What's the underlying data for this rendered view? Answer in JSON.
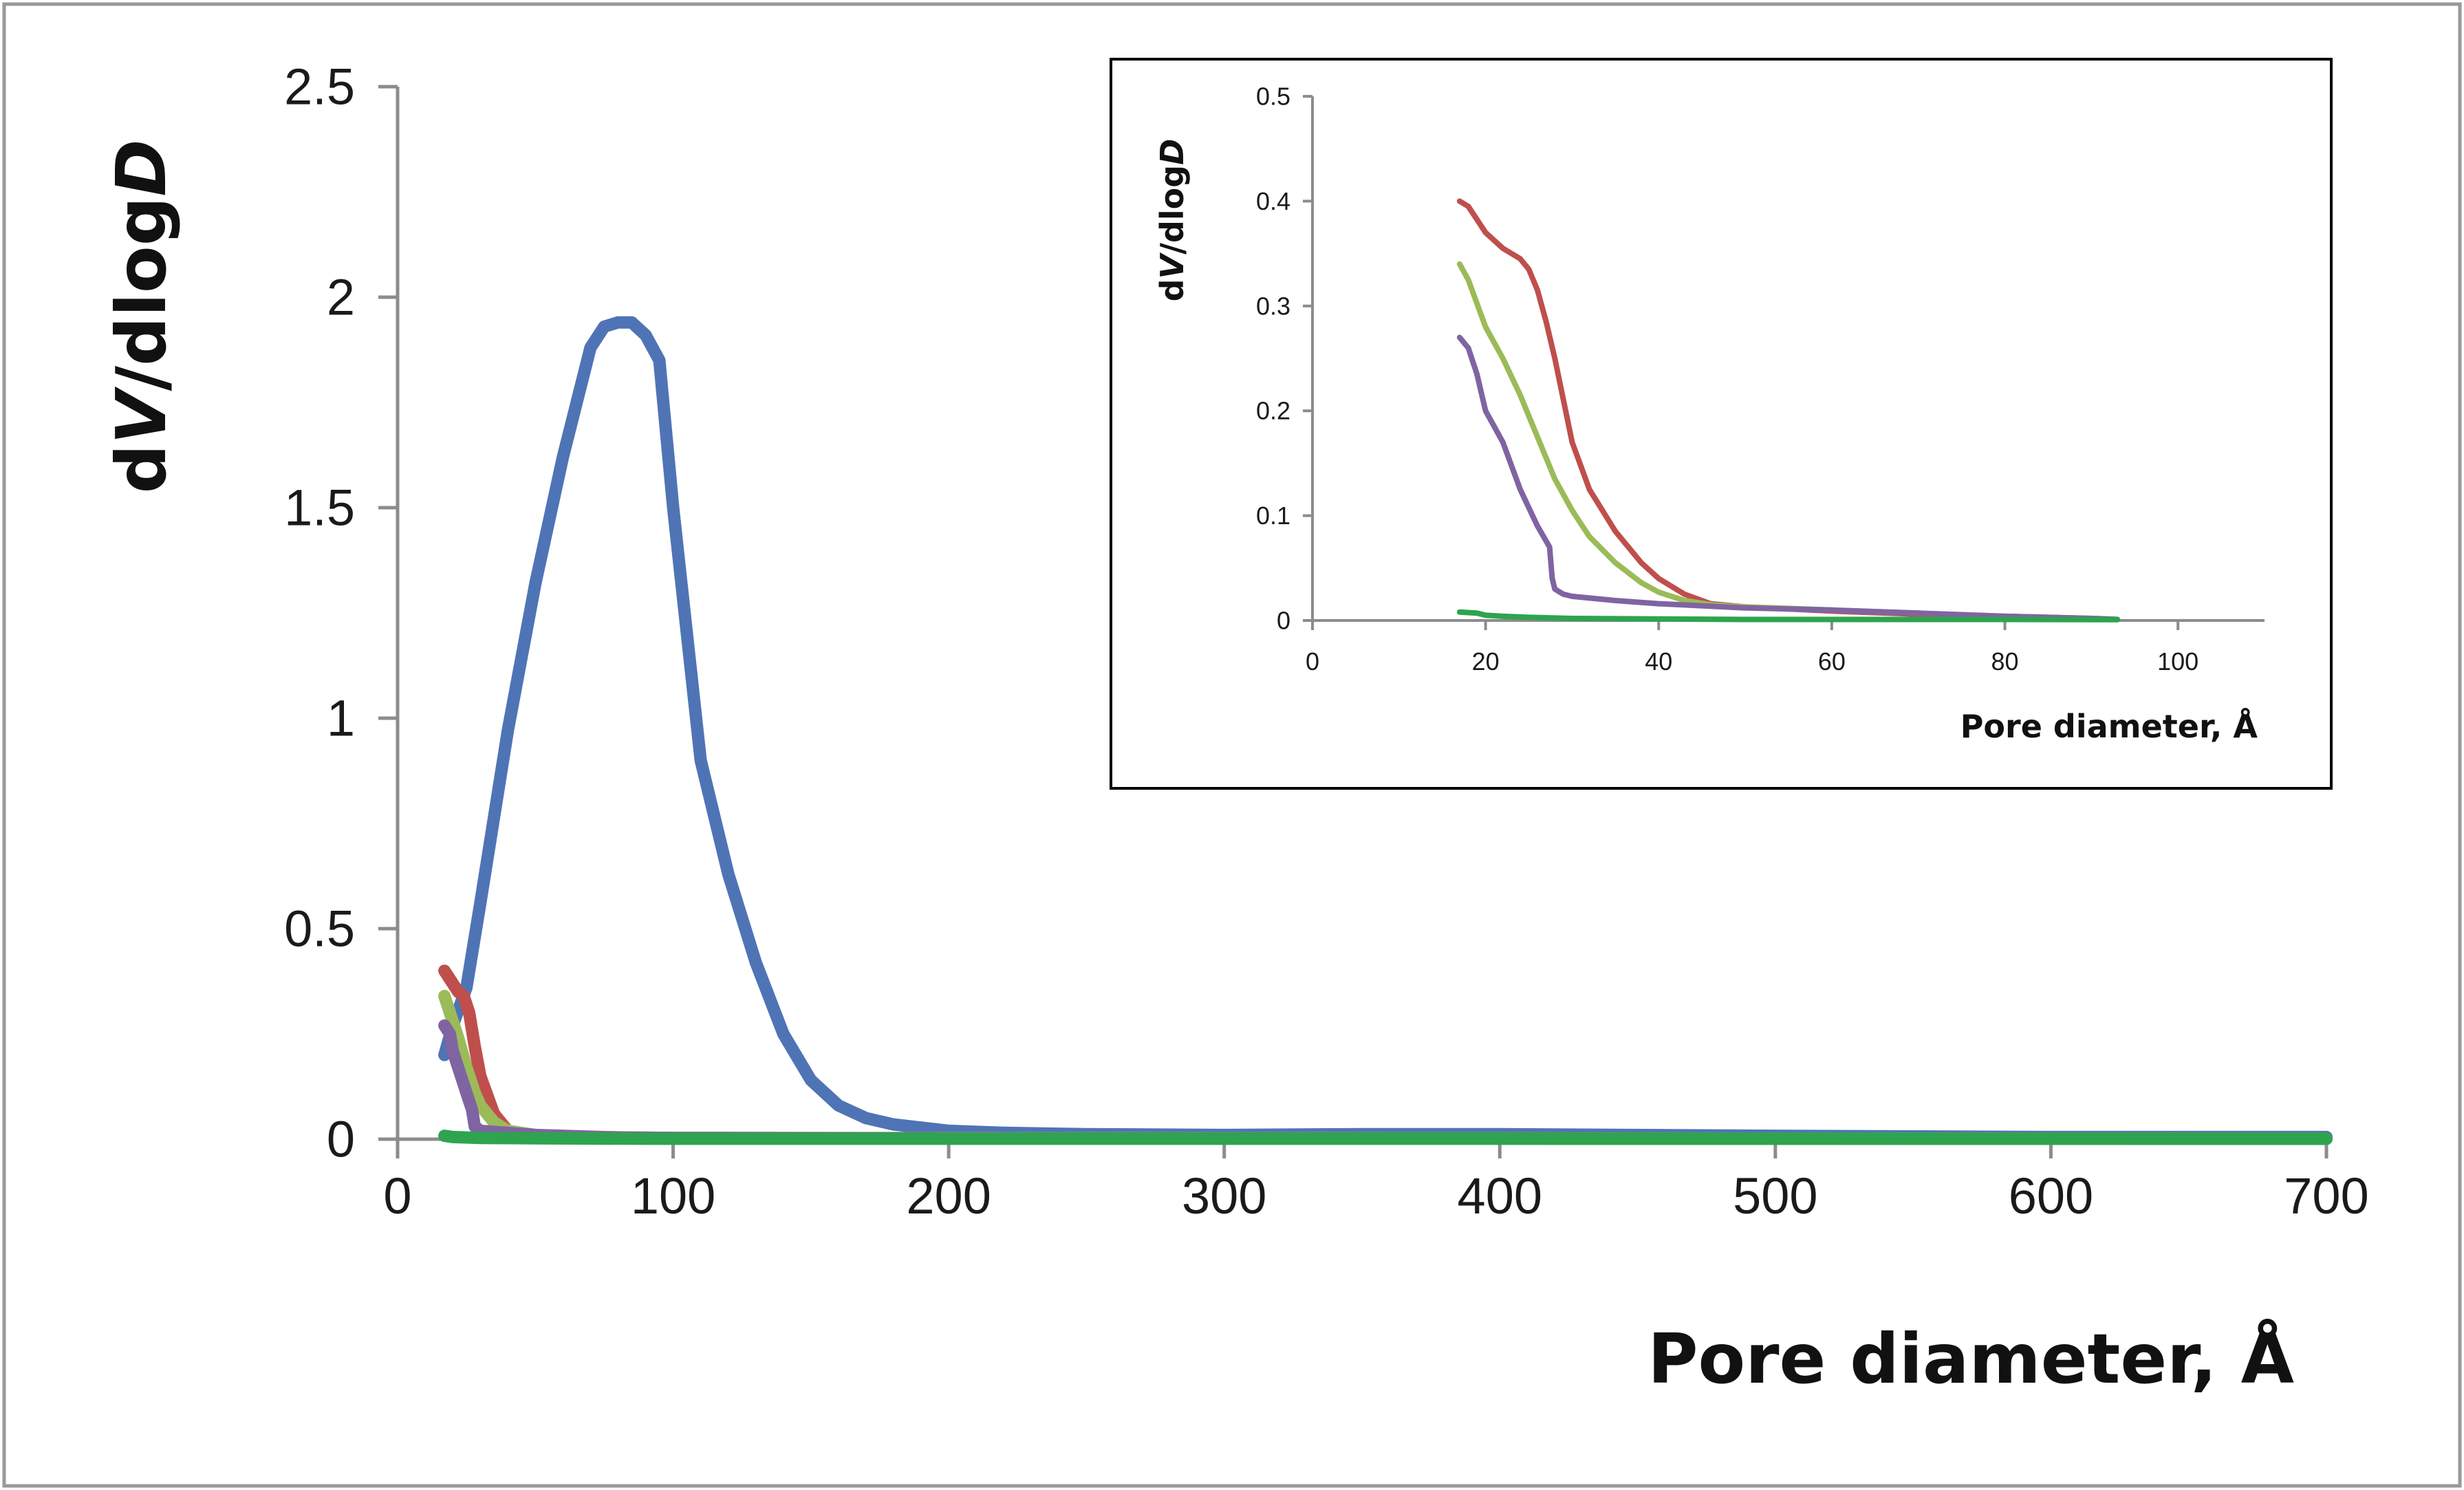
{
  "colors": {
    "blue": "#4f74b5",
    "red": "#bf4f4c",
    "light_green": "#9bbb59",
    "purple": "#8064a2",
    "green": "#2ea44f",
    "axis": "#8c8c8c",
    "frame": "#999999",
    "inset_frame": "#000000"
  },
  "chart_data": [
    {
      "id": "main",
      "type": "line",
      "title": "",
      "xlabel": "Pore diameter, Å",
      "ylabel_parts": [
        {
          "text": "d",
          "italic": false
        },
        {
          "text": "V",
          "italic": true
        },
        {
          "text": "/dlog",
          "italic": false
        },
        {
          "text": "D",
          "italic": true
        }
      ],
      "xlim": [
        0,
        700
      ],
      "ylim": [
        0,
        2.5
      ],
      "xticks": [
        "0",
        "100",
        "200",
        "300",
        "400",
        "500",
        "600",
        "700"
      ],
      "yticks": [
        "0",
        "0.5",
        "1",
        "1.5",
        "2",
        "2.5"
      ],
      "xtick_values": [
        0,
        100,
        200,
        300,
        400,
        500,
        600,
        700
      ],
      "ytick_values": [
        0,
        0.5,
        1,
        1.5,
        2,
        2.5
      ],
      "grid": false,
      "series": [
        {
          "name": "blue",
          "color_key": "blue",
          "x": [
            17,
            20,
            25,
            30,
            40,
            50,
            60,
            70,
            75,
            80,
            85,
            90,
            95,
            100,
            110,
            120,
            130,
            140,
            150,
            160,
            170,
            180,
            200,
            220,
            250,
            300,
            350,
            400,
            500,
            600,
            700
          ],
          "y": [
            0.2,
            0.27,
            0.36,
            0.56,
            0.97,
            1.32,
            1.62,
            1.88,
            1.93,
            1.94,
            1.94,
            1.91,
            1.85,
            1.5,
            0.9,
            0.63,
            0.42,
            0.25,
            0.14,
            0.08,
            0.05,
            0.035,
            0.02,
            0.015,
            0.012,
            0.01,
            0.012,
            0.012,
            0.008,
            0.005,
            0.005
          ]
        },
        {
          "name": "red",
          "color_key": "red",
          "x": [
            17,
            20,
            22,
            24,
            26,
            28,
            30,
            35,
            40,
            45,
            50,
            60,
            80,
            100,
            200,
            700
          ],
          "y": [
            0.4,
            0.37,
            0.35,
            0.34,
            0.3,
            0.22,
            0.15,
            0.06,
            0.02,
            0.012,
            0.008,
            0.006,
            0.004,
            0.003,
            0.002,
            0.001
          ]
        },
        {
          "name": "light-green",
          "color_key": "light_green",
          "x": [
            17,
            20,
            22,
            25,
            28,
            30,
            35,
            40,
            50,
            60,
            100,
            700
          ],
          "y": [
            0.34,
            0.28,
            0.24,
            0.17,
            0.11,
            0.08,
            0.04,
            0.02,
            0.01,
            0.006,
            0.003,
            0.001
          ]
        },
        {
          "name": "purple",
          "color_key": "purple",
          "x": [
            17,
            19,
            20,
            22,
            24,
            25,
            27,
            28,
            30,
            40,
            50,
            60,
            80,
            100,
            200,
            700
          ],
          "y": [
            0.27,
            0.25,
            0.21,
            0.17,
            0.13,
            0.11,
            0.07,
            0.03,
            0.02,
            0.015,
            0.01,
            0.008,
            0.004,
            0.003,
            0.002,
            0.001
          ]
        },
        {
          "name": "green",
          "color_key": "green",
          "x": [
            17,
            20,
            30,
            50,
            93,
            700
          ],
          "y": [
            0.008,
            0.005,
            0.003,
            0.002,
            0.001,
            0.001
          ]
        }
      ]
    },
    {
      "id": "inset",
      "type": "line",
      "title": "",
      "xlabel": "Pore diameter, Å",
      "ylabel_parts": [
        {
          "text": "d",
          "italic": false
        },
        {
          "text": "V",
          "italic": true
        },
        {
          "text": "/dlog",
          "italic": false
        },
        {
          "text": "D",
          "italic": true
        }
      ],
      "xlim": [
        0,
        110
      ],
      "ylim": [
        0,
        0.5
      ],
      "xticks": [
        "0",
        "20",
        "40",
        "60",
        "80",
        "100"
      ],
      "yticks": [
        "0",
        "0.1",
        "0.2",
        "0.3",
        "0.4",
        "0.5"
      ],
      "xtick_values": [
        0,
        20,
        40,
        60,
        80,
        100
      ],
      "ytick_values": [
        0,
        0.1,
        0.2,
        0.3,
        0.4,
        0.5
      ],
      "grid": false,
      "series": [
        {
          "name": "red",
          "color_key": "red",
          "x": [
            17,
            18,
            20,
            22,
            24,
            25,
            26,
            27,
            28,
            30,
            32,
            35,
            38,
            40,
            43,
            46,
            50,
            55,
            60,
            70,
            80,
            90,
            93
          ],
          "y": [
            0.4,
            0.395,
            0.37,
            0.355,
            0.345,
            0.335,
            0.315,
            0.285,
            0.25,
            0.17,
            0.125,
            0.085,
            0.055,
            0.04,
            0.025,
            0.016,
            0.013,
            0.011,
            0.009,
            0.006,
            0.004,
            0.002,
            0.001
          ]
        },
        {
          "name": "light-green",
          "color_key": "light_green",
          "x": [
            17,
            18,
            20,
            22,
            24,
            26,
            28,
            30,
            32,
            35,
            38,
            40,
            43,
            46,
            50,
            60,
            70,
            80,
            90,
            93
          ],
          "y": [
            0.34,
            0.325,
            0.28,
            0.25,
            0.215,
            0.175,
            0.135,
            0.105,
            0.08,
            0.055,
            0.036,
            0.027,
            0.019,
            0.015,
            0.013,
            0.01,
            0.007,
            0.004,
            0.002,
            0.001
          ]
        },
        {
          "name": "purple",
          "color_key": "purple",
          "x": [
            17,
            18,
            19,
            20,
            22,
            24,
            26,
            27.4,
            27.7,
            28,
            29,
            30,
            35,
            40,
            50,
            60,
            70,
            80,
            90,
            93
          ],
          "y": [
            0.27,
            0.26,
            0.235,
            0.2,
            0.17,
            0.125,
            0.09,
            0.07,
            0.04,
            0.03,
            0.025,
            0.023,
            0.019,
            0.016,
            0.012,
            0.01,
            0.007,
            0.004,
            0.002,
            0.001
          ]
        },
        {
          "name": "green",
          "color_key": "green",
          "x": [
            17,
            19,
            20,
            22,
            25,
            30,
            40,
            50,
            60,
            70,
            80,
            93
          ],
          "y": [
            0.008,
            0.007,
            0.005,
            0.004,
            0.003,
            0.002,
            0.0015,
            0.001,
            0.001,
            0.001,
            0.001,
            0.0008
          ]
        }
      ]
    }
  ]
}
